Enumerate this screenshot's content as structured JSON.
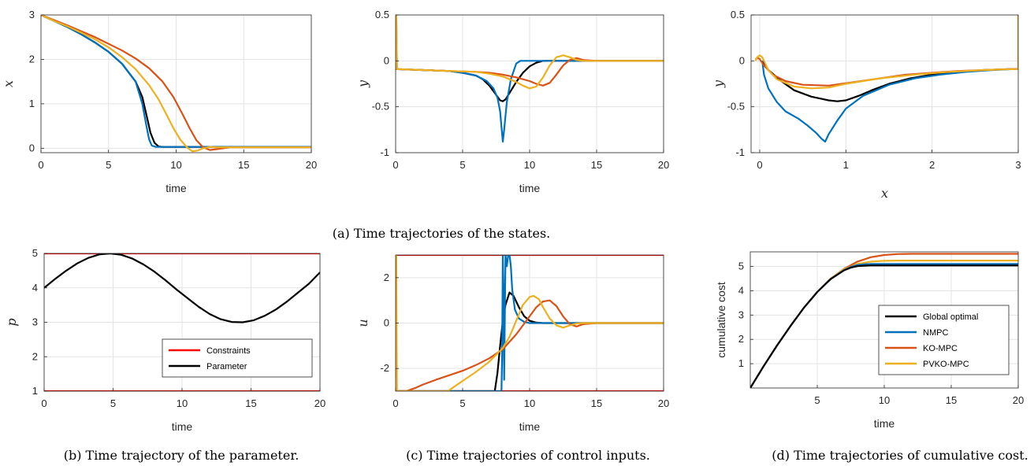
{
  "colors": {
    "global": "#000000",
    "nmpc": "#0072BD",
    "ko": "#D95319",
    "pvko": "#EDB120",
    "constraint": "#FF0000",
    "grid": "#E3E3E3",
    "axis": "#262626"
  },
  "captions": {
    "a": "(a) Time trajectories of the states.",
    "b": "(b) Time trajectory of the parameter.",
    "c": "(c) Time trajectories of control inputs.",
    "d": "(d) Time trajectories of cumulative cost."
  },
  "chart_data": [
    {
      "id": "x_time",
      "type": "line",
      "xlabel": "time",
      "ylabel": "x",
      "xlim": [
        0,
        20
      ],
      "ylim": [
        -0.1,
        3
      ],
      "xticks": [
        0,
        5,
        10,
        15,
        20
      ],
      "yticks": [
        0,
        1,
        2,
        3
      ],
      "grid": true,
      "series": [
        {
          "key": "global",
          "x": [
            0,
            1,
            2,
            3,
            4,
            5,
            6,
            7,
            7.5,
            7.8,
            8.1,
            8.4,
            8.7,
            9,
            9.5,
            10,
            20
          ],
          "y": [
            3,
            2.86,
            2.72,
            2.56,
            2.38,
            2.17,
            1.9,
            1.5,
            1.15,
            0.75,
            0.35,
            0.12,
            0.04,
            0.03,
            0.03,
            0.03,
            0.03
          ]
        },
        {
          "key": "nmpc",
          "x": [
            0,
            1,
            2,
            3,
            4,
            5,
            6,
            7,
            7.5,
            7.8,
            8,
            8.2,
            8.5,
            9,
            10,
            20
          ],
          "y": [
            3,
            2.86,
            2.72,
            2.56,
            2.38,
            2.17,
            1.9,
            1.5,
            1.0,
            0.5,
            0.2,
            0.06,
            0.03,
            0.03,
            0.03,
            0.03
          ]
        },
        {
          "key": "ko",
          "x": [
            0,
            1,
            2,
            3,
            4,
            5,
            6,
            7,
            8,
            9,
            9.8,
            10.5,
            11,
            11.5,
            12,
            12.5,
            13,
            14,
            20
          ],
          "y": [
            3,
            2.88,
            2.76,
            2.63,
            2.5,
            2.35,
            2.2,
            2.02,
            1.8,
            1.5,
            1.15,
            0.75,
            0.45,
            0.18,
            0.02,
            -0.04,
            -0.02,
            0.02,
            0.02
          ]
        },
        {
          "key": "pvko",
          "x": [
            0,
            1,
            2,
            3,
            4,
            5,
            6,
            7,
            8,
            8.7,
            9.3,
            9.8,
            10.3,
            10.8,
            11.2,
            11.6,
            12,
            12.5,
            13,
            14,
            20
          ],
          "y": [
            3,
            2.86,
            2.74,
            2.6,
            2.45,
            2.27,
            2.05,
            1.78,
            1.42,
            1.1,
            0.75,
            0.45,
            0.2,
            0.02,
            -0.07,
            -0.05,
            0.0,
            0.03,
            0.02,
            0.02,
            0.02
          ]
        }
      ]
    },
    {
      "id": "y_time",
      "type": "line",
      "xlabel": "time",
      "ylabel": "y",
      "xlim": [
        0,
        20
      ],
      "ylim": [
        -1,
        0.5
      ],
      "xticks": [
        0,
        5,
        10,
        15,
        20
      ],
      "yticks": [
        -1,
        -0.5,
        0,
        0.5
      ],
      "grid": true,
      "series": [
        {
          "key": "global",
          "x": [
            0,
            2,
            4,
            5,
            6,
            6.5,
            7,
            7.5,
            7.8,
            8,
            8.2,
            8.5,
            9,
            9.5,
            10,
            10.5,
            11,
            12,
            13,
            20
          ],
          "y": [
            -0.09,
            -0.1,
            -0.11,
            -0.13,
            -0.16,
            -0.2,
            -0.27,
            -0.37,
            -0.43,
            -0.44,
            -0.42,
            -0.35,
            -0.23,
            -0.13,
            -0.06,
            -0.02,
            0,
            0,
            0,
            0
          ]
        },
        {
          "key": "nmpc",
          "x": [
            0,
            0.05,
            0.1,
            2,
            4,
            5,
            6,
            6.8,
            7.3,
            7.6,
            7.8,
            7.9,
            8,
            8.1,
            8.3,
            8.6,
            9,
            9.3,
            10,
            20
          ],
          "y": [
            0.5,
            0.5,
            -0.09,
            -0.1,
            -0.11,
            -0.13,
            -0.16,
            -0.22,
            -0.3,
            -0.4,
            -0.55,
            -0.72,
            -0.88,
            -0.75,
            -0.45,
            -0.2,
            -0.03,
            0,
            0,
            0
          ]
        },
        {
          "key": "ko",
          "x": [
            0,
            2,
            4,
            6,
            7,
            8,
            9,
            10,
            10.5,
            11,
            11.5,
            12,
            12.5,
            13,
            13.5,
            14,
            15,
            20
          ],
          "y": [
            -0.09,
            -0.1,
            -0.11,
            -0.12,
            -0.13,
            -0.15,
            -0.18,
            -0.22,
            -0.25,
            -0.27,
            -0.24,
            -0.15,
            -0.05,
            0.01,
            0.03,
            0.01,
            0,
            0
          ]
        },
        {
          "key": "pvko",
          "x": [
            0,
            0.05,
            0.1,
            2,
            4,
            6,
            7,
            8,
            9,
            9.5,
            10,
            10.5,
            11,
            11.5,
            12,
            12.5,
            13,
            13.5,
            14,
            20
          ],
          "y": [
            0.5,
            0.5,
            -0.09,
            -0.1,
            -0.11,
            -0.12,
            -0.14,
            -0.17,
            -0.23,
            -0.27,
            -0.3,
            -0.28,
            -0.18,
            -0.05,
            0.04,
            0.06,
            0.04,
            0.01,
            0,
            0
          ]
        }
      ]
    },
    {
      "id": "phase",
      "type": "line",
      "xlabel": "x",
      "ylabel": "y",
      "xlim": [
        -0.1,
        3
      ],
      "ylim": [
        -1,
        0.5
      ],
      "xticks": [
        0,
        1,
        2,
        3
      ],
      "yticks": [
        -1,
        -0.5,
        0,
        0.5
      ],
      "grid": true,
      "series": [
        {
          "key": "global",
          "x": [
            0.03,
            0.1,
            0.25,
            0.4,
            0.6,
            0.8,
            0.9,
            1.0,
            1.15,
            1.3,
            1.5,
            1.75,
            2.0,
            2.3,
            2.6,
            2.9,
            3
          ],
          "y": [
            0,
            -0.1,
            -0.22,
            -0.32,
            -0.39,
            -0.43,
            -0.44,
            -0.43,
            -0.38,
            -0.32,
            -0.25,
            -0.19,
            -0.15,
            -0.12,
            -0.1,
            -0.09,
            -0.09
          ]
        },
        {
          "key": "nmpc",
          "x": [
            0.03,
            0.05,
            0.1,
            0.2,
            0.3,
            0.45,
            0.55,
            0.65,
            0.72,
            0.76,
            0.8,
            0.9,
            1.0,
            1.2,
            1.5,
            1.8,
            2.1,
            2.4,
            2.7,
            2.95,
            3,
            3
          ],
          "y": [
            0,
            -0.15,
            -0.3,
            -0.45,
            -0.55,
            -0.63,
            -0.7,
            -0.78,
            -0.85,
            -0.88,
            -0.8,
            -0.65,
            -0.52,
            -0.38,
            -0.26,
            -0.19,
            -0.15,
            -0.12,
            -0.1,
            -0.09,
            -0.09,
            0.5
          ]
        },
        {
          "key": "ko",
          "x": [
            -0.05,
            -0.02,
            0.0,
            0.05,
            0.15,
            0.3,
            0.5,
            0.8,
            1.1,
            1.4,
            1.7,
            2.0,
            2.3,
            2.6,
            2.9,
            3
          ],
          "y": [
            0.02,
            0.03,
            0.02,
            -0.05,
            -0.15,
            -0.22,
            -0.26,
            -0.27,
            -0.23,
            -0.19,
            -0.15,
            -0.13,
            -0.11,
            -0.1,
            -0.09,
            -0.09
          ]
        },
        {
          "key": "pvko",
          "x": [
            -0.05,
            -0.03,
            0.0,
            0.03,
            0.05,
            0.1,
            0.2,
            0.4,
            0.6,
            0.8,
            1.0,
            1.4,
            1.8,
            2.2,
            2.6,
            2.95,
            3,
            3
          ],
          "y": [
            0.0,
            0.04,
            0.06,
            0.04,
            0.0,
            -0.1,
            -0.2,
            -0.28,
            -0.3,
            -0.29,
            -0.25,
            -0.19,
            -0.15,
            -0.12,
            -0.1,
            -0.09,
            -0.09,
            0.5
          ]
        }
      ]
    },
    {
      "id": "param",
      "type": "line",
      "xlabel": "time",
      "ylabel": "p",
      "xlim": [
        0,
        20
      ],
      "ylim": [
        1,
        5
      ],
      "xticks": [
        0,
        5,
        10,
        15,
        20
      ],
      "yticks": [
        1,
        2,
        3,
        4,
        5
      ],
      "grid": true,
      "legend": {
        "position": "bottom-right",
        "entries": [
          {
            "key": "constraint",
            "label": "Constraints"
          },
          {
            "key": "global",
            "label": "Parameter"
          }
        ]
      },
      "series": [
        {
          "key": "constraint",
          "x": [
            0,
            20
          ],
          "y": [
            5,
            5
          ]
        },
        {
          "key": "constraint",
          "x": [
            0,
            20
          ],
          "y": [
            1,
            1
          ]
        },
        {
          "key": "global",
          "x": [
            0,
            0.8,
            1.6,
            2.4,
            3.2,
            4,
            4.8,
            5.6,
            6.4,
            7.2,
            8,
            8.8,
            9.6,
            10.4,
            11.2,
            12,
            12.8,
            13.6,
            14.4,
            15.2,
            16,
            16.8,
            17.6,
            18.4,
            19.2,
            20
          ],
          "y": [
            4,
            4.26,
            4.5,
            4.71,
            4.87,
            4.97,
            5,
            4.96,
            4.85,
            4.68,
            4.47,
            4.22,
            3.95,
            3.7,
            3.45,
            3.24,
            3.09,
            3.01,
            3,
            3.06,
            3.19,
            3.37,
            3.6,
            3.86,
            4.12,
            4.45
          ]
        }
      ]
    },
    {
      "id": "control",
      "type": "line",
      "xlabel": "time",
      "ylabel": "u",
      "xlim": [
        0,
        20
      ],
      "ylim": [
        -3,
        3
      ],
      "xticks": [
        0,
        5,
        10,
        15,
        20
      ],
      "yticks": [
        -2,
        0,
        2
      ],
      "grid": true,
      "series": [
        {
          "key": "constraint",
          "x": [
            0,
            20
          ],
          "y": [
            3,
            3
          ]
        },
        {
          "key": "constraint",
          "x": [
            0,
            20
          ],
          "y": [
            -3,
            -3
          ]
        },
        {
          "key": "global",
          "x": [
            0,
            7.4,
            7.6,
            7.8,
            8,
            8.2,
            8.5,
            8.8,
            9.2,
            9.6,
            10,
            10.5,
            11,
            12,
            20
          ],
          "y": [
            -3,
            -3,
            -2.2,
            -1,
            0.1,
            0.8,
            1.35,
            1.2,
            0.7,
            0.3,
            0.1,
            0.02,
            0,
            0,
            0
          ]
        },
        {
          "key": "nmpc",
          "x": [
            0,
            7.9,
            7.95,
            8.0,
            8.05,
            8.1,
            8.2,
            8.3,
            8.4,
            8.5,
            8.6,
            8.7,
            8.9,
            9.2,
            9.6,
            10,
            20
          ],
          "y": [
            -3,
            -3,
            -1.5,
            3,
            1.5,
            -2.5,
            3,
            2.5,
            3,
            3,
            2.5,
            1.5,
            0.6,
            0.2,
            0.05,
            0,
            0
          ]
        },
        {
          "key": "ko",
          "x": [
            0,
            0.8,
            1.5,
            2,
            3,
            4,
            5,
            6,
            7,
            8,
            9,
            10,
            10.5,
            11,
            11.5,
            12,
            12.5,
            13,
            13.5,
            14,
            15,
            20
          ],
          "y": [
            -3,
            -3,
            -2.85,
            -2.72,
            -2.5,
            -2.3,
            -2.1,
            -1.85,
            -1.55,
            -1.15,
            -0.5,
            0.3,
            0.7,
            0.95,
            1.0,
            0.75,
            0.3,
            -0.05,
            -0.15,
            -0.05,
            0,
            0
          ]
        },
        {
          "key": "pvko",
          "x": [
            0,
            0.05,
            0.1,
            3.9,
            4.5,
            5,
            6,
            7,
            8,
            8.5,
            9,
            9.5,
            10,
            10.3,
            10.7,
            11,
            11.5,
            12,
            12.5,
            13,
            13.5,
            14,
            15,
            20
          ],
          "y": [
            3,
            3,
            -3,
            -3,
            -2.75,
            -2.55,
            -2.15,
            -1.7,
            -1.1,
            -0.6,
            0.1,
            0.8,
            1.15,
            1.2,
            1.05,
            0.7,
            0.2,
            -0.1,
            -0.2,
            -0.1,
            -0.02,
            0,
            0,
            0
          ]
        }
      ]
    },
    {
      "id": "cost",
      "type": "line",
      "xlabel": "time",
      "ylabel": "cumulative cost",
      "xlim": [
        0,
        20
      ],
      "ylim": [
        0,
        5.6
      ],
      "xticks": [
        5,
        10,
        15,
        20
      ],
      "yticks": [
        1,
        2,
        3,
        4,
        5
      ],
      "grid": true,
      "legend": {
        "position": "right",
        "entries": [
          {
            "key": "global",
            "label": "Global optimal"
          },
          {
            "key": "nmpc",
            "label": "NMPC"
          },
          {
            "key": "ko",
            "label": "KO-MPC"
          },
          {
            "key": "pvko",
            "label": "PVKO-MPC"
          }
        ]
      },
      "series": [
        {
          "key": "ko",
          "x": [
            0,
            1,
            2,
            3,
            4,
            5,
            6,
            7,
            8,
            9,
            10,
            11,
            12,
            13,
            20
          ],
          "y": [
            0,
            0.9,
            1.75,
            2.55,
            3.3,
            3.95,
            4.5,
            4.9,
            5.2,
            5.38,
            5.47,
            5.51,
            5.52,
            5.52,
            5.52
          ]
        },
        {
          "key": "pvko",
          "x": [
            0,
            1,
            2,
            3,
            4,
            5,
            6,
            7,
            8,
            9,
            10,
            11,
            20
          ],
          "y": [
            0,
            0.9,
            1.75,
            2.55,
            3.3,
            3.95,
            4.5,
            4.88,
            5.1,
            5.2,
            5.23,
            5.24,
            5.24
          ]
        },
        {
          "key": "nmpc",
          "x": [
            0,
            1,
            2,
            3,
            4,
            5,
            6,
            7,
            7.5,
            8,
            8.5,
            9,
            10,
            20
          ],
          "y": [
            0,
            0.9,
            1.75,
            2.55,
            3.3,
            3.95,
            4.48,
            4.85,
            4.98,
            5.06,
            5.09,
            5.1,
            5.1,
            5.1
          ]
        },
        {
          "key": "global",
          "x": [
            0,
            1,
            2,
            3,
            4,
            5,
            6,
            7,
            7.5,
            8,
            8.5,
            9,
            10,
            20
          ],
          "y": [
            0,
            0.9,
            1.75,
            2.55,
            3.3,
            3.95,
            4.48,
            4.84,
            4.95,
            5.01,
            5.03,
            5.04,
            5.04,
            5.04
          ]
        }
      ]
    }
  ]
}
